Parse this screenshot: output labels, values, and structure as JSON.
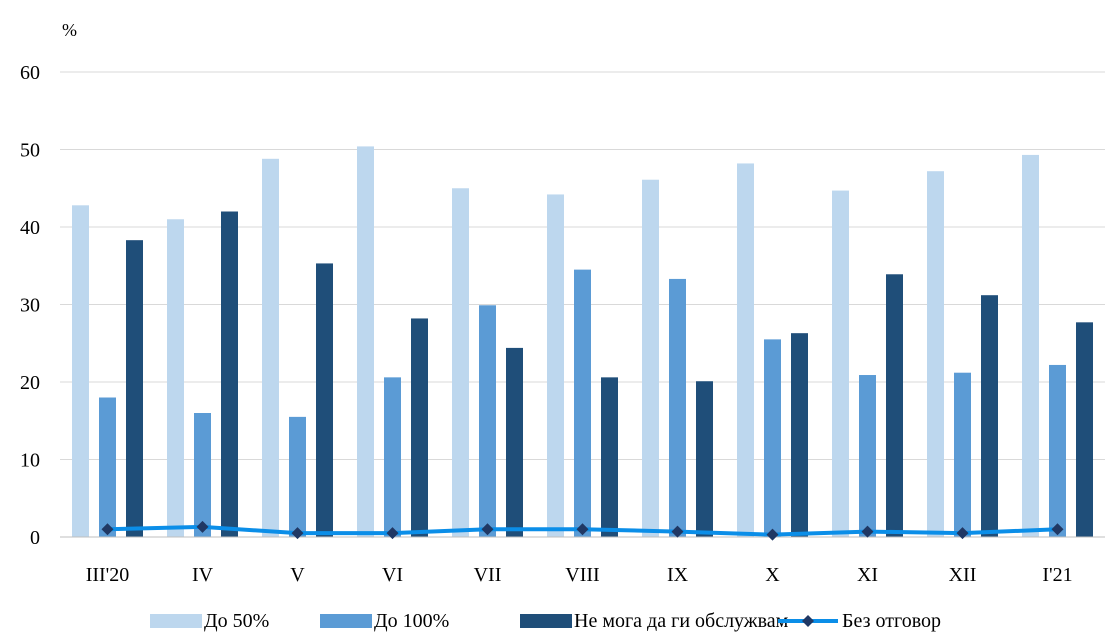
{
  "chart_data": {
    "type": "bar",
    "unit_label": "%",
    "categories": [
      "III'20",
      "IV",
      "V",
      "VI",
      "VII",
      "VIII",
      "IX",
      "X",
      "XI",
      "XII",
      "I'21"
    ],
    "ylim": [
      0,
      60
    ],
    "yticks": [
      0,
      10,
      20,
      30,
      40,
      50,
      60
    ],
    "grid": true,
    "legend_position": "bottom",
    "series": [
      {
        "name": "До 50%",
        "kind": "bar",
        "color": "#bdd7ee",
        "values": [
          42.8,
          41.0,
          48.8,
          50.4,
          45.0,
          44.2,
          46.1,
          48.2,
          44.7,
          47.2,
          49.3
        ]
      },
      {
        "name": "До 100%",
        "kind": "bar",
        "color": "#5b9bd5",
        "values": [
          18.0,
          16.0,
          15.5,
          20.6,
          29.9,
          34.5,
          33.3,
          25.5,
          20.9,
          21.2,
          22.2
        ]
      },
      {
        "name": "Не мога да ги обслужвам",
        "kind": "bar",
        "color": "#1f4e79",
        "values": [
          38.3,
          42.0,
          35.3,
          28.2,
          24.4,
          20.6,
          20.1,
          26.3,
          33.9,
          31.2,
          27.7
        ]
      },
      {
        "name": "Без отговор",
        "kind": "line",
        "color": "#0b8ee8",
        "marker_color": "#203864",
        "values": [
          1.0,
          1.3,
          0.5,
          0.5,
          1.0,
          1.0,
          0.7,
          0.3,
          0.7,
          0.5,
          1.0
        ]
      }
    ]
  }
}
